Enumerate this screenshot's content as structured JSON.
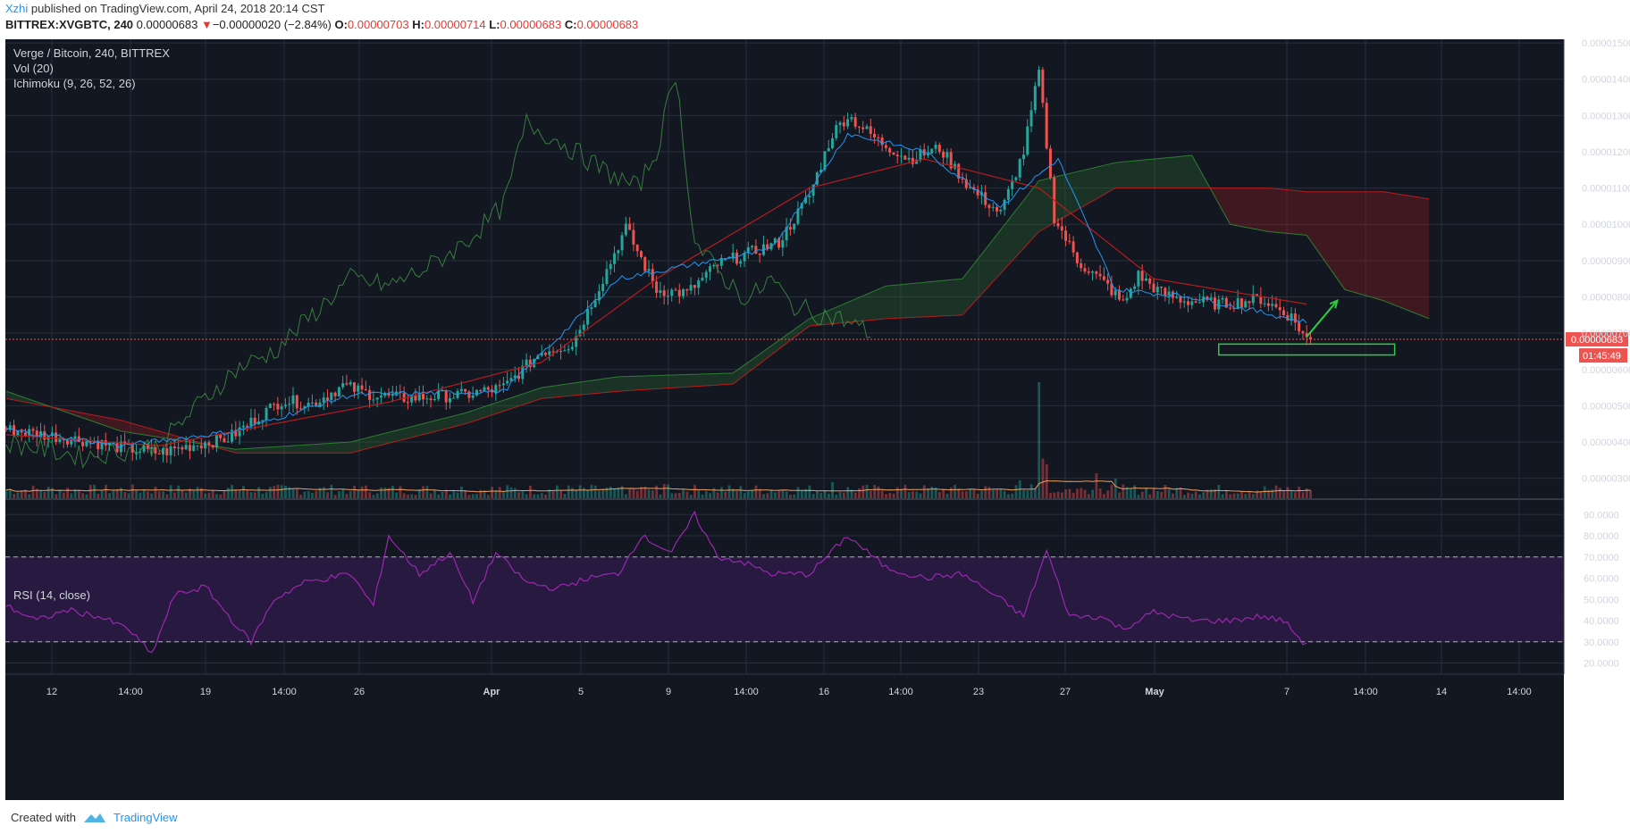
{
  "header": {
    "author": "Xzhi",
    "published_text": "published on TradingView.com, April 24, 2018 20:14 CST",
    "symbol": "BITTREX:XVGBTC, 240",
    "last": "0.00000683",
    "change": "−0.00000020 (−2.84%)",
    "o_label": "O:",
    "o": "0.00000703",
    "h_label": "H:",
    "h": "0.00000714",
    "l_label": "L:",
    "l": "0.00000683",
    "c_label": "C:",
    "c": "0.00000683"
  },
  "legend": {
    "title": "Verge / Bitcoin, 240, BITTREX",
    "vol": "Vol (20)",
    "ichimoku": "Ichimoku (9, 26, 52, 26)",
    "rsi": "RSI (14, close)"
  },
  "footer": {
    "created": "Created with",
    "brand": "TradingView"
  },
  "colors": {
    "background": "#131722",
    "grid": "#2a2e39",
    "up": "#26a69a",
    "down": "#ef5350",
    "leading_green": "#2e7d32",
    "leading_red": "#b71c1c",
    "tenkan": "#2196f3",
    "kijun": "#b71c1c",
    "lagging": "#43a047",
    "rsi": "#9c27b0",
    "rsi_band": "#2a1a44",
    "volume_ma": "#f0a060",
    "annotation": "#2ecc40",
    "price_label": "#ef5350"
  },
  "chart_data": [
    {
      "type": "candlestick",
      "title": "Verge / Bitcoin, 240, BITTREX",
      "y_ticks": [
        "0.00000300",
        "0.00000400",
        "0.00000500",
        "0.00000600",
        "0.00000700",
        "0.00000800",
        "0.00000900",
        "0.00001000",
        "0.00001100",
        "0.00001200",
        "0.00001300",
        "0.00001400",
        "0.00001500"
      ],
      "ylim": [
        2.5e-06,
        1.51e-05
      ],
      "x_ticks": [
        "12",
        "14:00",
        "19",
        "14:00",
        "26",
        "Apr",
        "5",
        "9",
        "14:00",
        "16",
        "14:00",
        "23",
        "27",
        "May",
        "7",
        "14:00",
        "14",
        "14:00"
      ],
      "current_price_label": "0.00000683",
      "countdown_label": "01:45:49",
      "close_anchors": [
        [
          0,
          4.35
        ],
        [
          10,
          4.2
        ],
        [
          20,
          4.05
        ],
        [
          30,
          3.85
        ],
        [
          40,
          3.7
        ],
        [
          50,
          3.95
        ],
        [
          58,
          4.1
        ],
        [
          66,
          4.7
        ],
        [
          72,
          5.15
        ],
        [
          80,
          5.05
        ],
        [
          88,
          5.55
        ],
        [
          96,
          5.3
        ],
        [
          104,
          5.2
        ],
        [
          112,
          5.25
        ],
        [
          120,
          5.3
        ],
        [
          130,
          5.5
        ],
        [
          140,
          6.5
        ],
        [
          148,
          6.7
        ],
        [
          156,
          8.5
        ],
        [
          162,
          9.9
        ],
        [
          170,
          8.2
        ],
        [
          178,
          8.1
        ],
        [
          186,
          8.9
        ],
        [
          194,
          9.2
        ],
        [
          202,
          9.5
        ],
        [
          210,
          10.8
        ],
        [
          216,
          12.5
        ],
        [
          220,
          13.0
        ],
        [
          228,
          12.3
        ],
        [
          236,
          11.8
        ],
        [
          244,
          12.1
        ],
        [
          252,
          11.0
        ],
        [
          260,
          10.3
        ],
        [
          266,
          12.0
        ],
        [
          270,
          14.2
        ],
        [
          274,
          10.2
        ],
        [
          280,
          9.0
        ],
        [
          288,
          8.3
        ],
        [
          292,
          7.8
        ],
        [
          296,
          8.6
        ],
        [
          302,
          8.1
        ],
        [
          308,
          7.9
        ],
        [
          318,
          7.8
        ],
        [
          328,
          7.95
        ],
        [
          336,
          7.45
        ],
        [
          340,
          6.83
        ]
      ],
      "volume_baseline": 12,
      "volume_spikes": [
        [
          270,
          130
        ],
        [
          272,
          38
        ],
        [
          265,
          20
        ],
        [
          285,
          28
        ],
        [
          290,
          22
        ],
        [
          216,
          18
        ],
        [
          172,
          16
        ],
        [
          160,
          12
        ],
        [
          142,
          10
        ],
        [
          60,
          10
        ],
        [
          90,
          8
        ],
        [
          120,
          9
        ]
      ],
      "ichimoku": {
        "tenkan": [
          [
            0,
            4.35
          ],
          [
            30,
            3.9
          ],
          [
            60,
            4.3
          ],
          [
            90,
            5.3
          ],
          [
            130,
            5.4
          ],
          [
            160,
            8.5
          ],
          [
            200,
            9.3
          ],
          [
            220,
            12.5
          ],
          [
            240,
            12.0
          ],
          [
            260,
            10.5
          ],
          [
            275,
            11.8
          ],
          [
            290,
            8.2
          ],
          [
            310,
            8.0
          ],
          [
            340,
            7.3
          ]
        ],
        "kijun": [
          [
            0,
            4.2
          ],
          [
            40,
            3.9
          ],
          [
            70,
            4.5
          ],
          [
            100,
            5.1
          ],
          [
            140,
            6.2
          ],
          [
            170,
            8.5
          ],
          [
            210,
            11.0
          ],
          [
            240,
            11.8
          ],
          [
            270,
            11.0
          ],
          [
            300,
            8.5
          ],
          [
            340,
            7.8
          ]
        ],
        "span_a": [
          [
            0,
            5.4
          ],
          [
            30,
            4.3
          ],
          [
            60,
            3.8
          ],
          [
            90,
            4.0
          ],
          [
            120,
            4.8
          ],
          [
            140,
            5.5
          ],
          [
            160,
            5.8
          ],
          [
            190,
            5.9
          ],
          [
            210,
            7.4
          ],
          [
            230,
            8.3
          ],
          [
            250,
            8.5
          ],
          [
            270,
            11.2
          ],
          [
            290,
            11.7
          ],
          [
            310,
            11.9
          ],
          [
            320,
            10.0
          ],
          [
            330,
            9.8
          ],
          [
            340,
            9.7
          ],
          [
            350,
            8.2
          ],
          [
            360,
            7.9
          ],
          [
            372,
            7.4
          ]
        ],
        "span_b": [
          [
            0,
            5.2
          ],
          [
            30,
            4.6
          ],
          [
            60,
            3.7
          ],
          [
            90,
            3.7
          ],
          [
            120,
            4.5
          ],
          [
            140,
            5.2
          ],
          [
            160,
            5.4
          ],
          [
            190,
            5.6
          ],
          [
            210,
            7.2
          ],
          [
            230,
            7.4
          ],
          [
            250,
            7.5
          ],
          [
            270,
            9.8
          ],
          [
            290,
            11.0
          ],
          [
            310,
            11.0
          ],
          [
            320,
            11.0
          ],
          [
            330,
            11.0
          ],
          [
            340,
            10.9
          ],
          [
            350,
            10.9
          ],
          [
            360,
            10.9
          ],
          [
            372,
            10.7
          ]
        ],
        "lagging": [
          [
            0,
            4.0
          ],
          [
            20,
            3.6
          ],
          [
            40,
            3.9
          ],
          [
            50,
            5.0
          ],
          [
            60,
            6.0
          ],
          [
            70,
            6.5
          ],
          [
            80,
            7.5
          ],
          [
            90,
            8.5
          ],
          [
            100,
            8.3
          ],
          [
            110,
            8.8
          ],
          [
            120,
            9.5
          ],
          [
            130,
            10.5
          ],
          [
            136,
            12.8
          ],
          [
            146,
            12.2
          ],
          [
            156,
            11.5
          ],
          [
            165,
            11.0
          ],
          [
            170,
            12.0
          ],
          [
            175,
            14.2
          ],
          [
            180,
            9.5
          ],
          [
            186,
            8.7
          ],
          [
            194,
            7.9
          ],
          [
            200,
            8.5
          ],
          [
            205,
            7.8
          ],
          [
            210,
            7.6
          ],
          [
            218,
            7.4
          ],
          [
            226,
            7.0
          ]
        ]
      },
      "annotations": {
        "arrow": {
          "from": [
            340,
            6.9
          ],
          "to": [
            348,
            7.9
          ]
        },
        "box": {
          "x0": 317,
          "x1": 363,
          "y0": 6.4,
          "y1": 6.7
        }
      }
    },
    {
      "type": "line",
      "title": "RSI (14, close)",
      "y_ticks": [
        "20.0000",
        "30.0000",
        "40.0000",
        "50.0000",
        "60.0000",
        "70.0000",
        "80.0000",
        "90.0000"
      ],
      "ylim": [
        16,
        96
      ],
      "band": [
        30,
        70
      ],
      "values_anchors": [
        [
          0,
          47
        ],
        [
          8,
          40
        ],
        [
          16,
          45
        ],
        [
          24,
          42
        ],
        [
          32,
          36
        ],
        [
          38,
          24
        ],
        [
          44,
          52
        ],
        [
          52,
          56
        ],
        [
          60,
          38
        ],
        [
          64,
          30
        ],
        [
          70,
          50
        ],
        [
          78,
          58
        ],
        [
          90,
          62
        ],
        [
          96,
          47
        ],
        [
          100,
          80
        ],
        [
          108,
          62
        ],
        [
          116,
          72
        ],
        [
          122,
          49
        ],
        [
          128,
          72
        ],
        [
          136,
          58
        ],
        [
          144,
          55
        ],
        [
          152,
          60
        ],
        [
          160,
          62
        ],
        [
          166,
          80
        ],
        [
          174,
          72
        ],
        [
          180,
          90
        ],
        [
          186,
          70
        ],
        [
          192,
          68
        ],
        [
          200,
          62
        ],
        [
          210,
          62
        ],
        [
          220,
          80
        ],
        [
          230,
          65
        ],
        [
          240,
          60
        ],
        [
          250,
          62
        ],
        [
          260,
          50
        ],
        [
          266,
          42
        ],
        [
          272,
          73
        ],
        [
          278,
          42
        ],
        [
          286,
          42
        ],
        [
          292,
          36
        ],
        [
          300,
          44
        ],
        [
          310,
          40
        ],
        [
          320,
          40
        ],
        [
          328,
          42
        ],
        [
          334,
          40
        ],
        [
          340,
          28
        ]
      ]
    }
  ]
}
